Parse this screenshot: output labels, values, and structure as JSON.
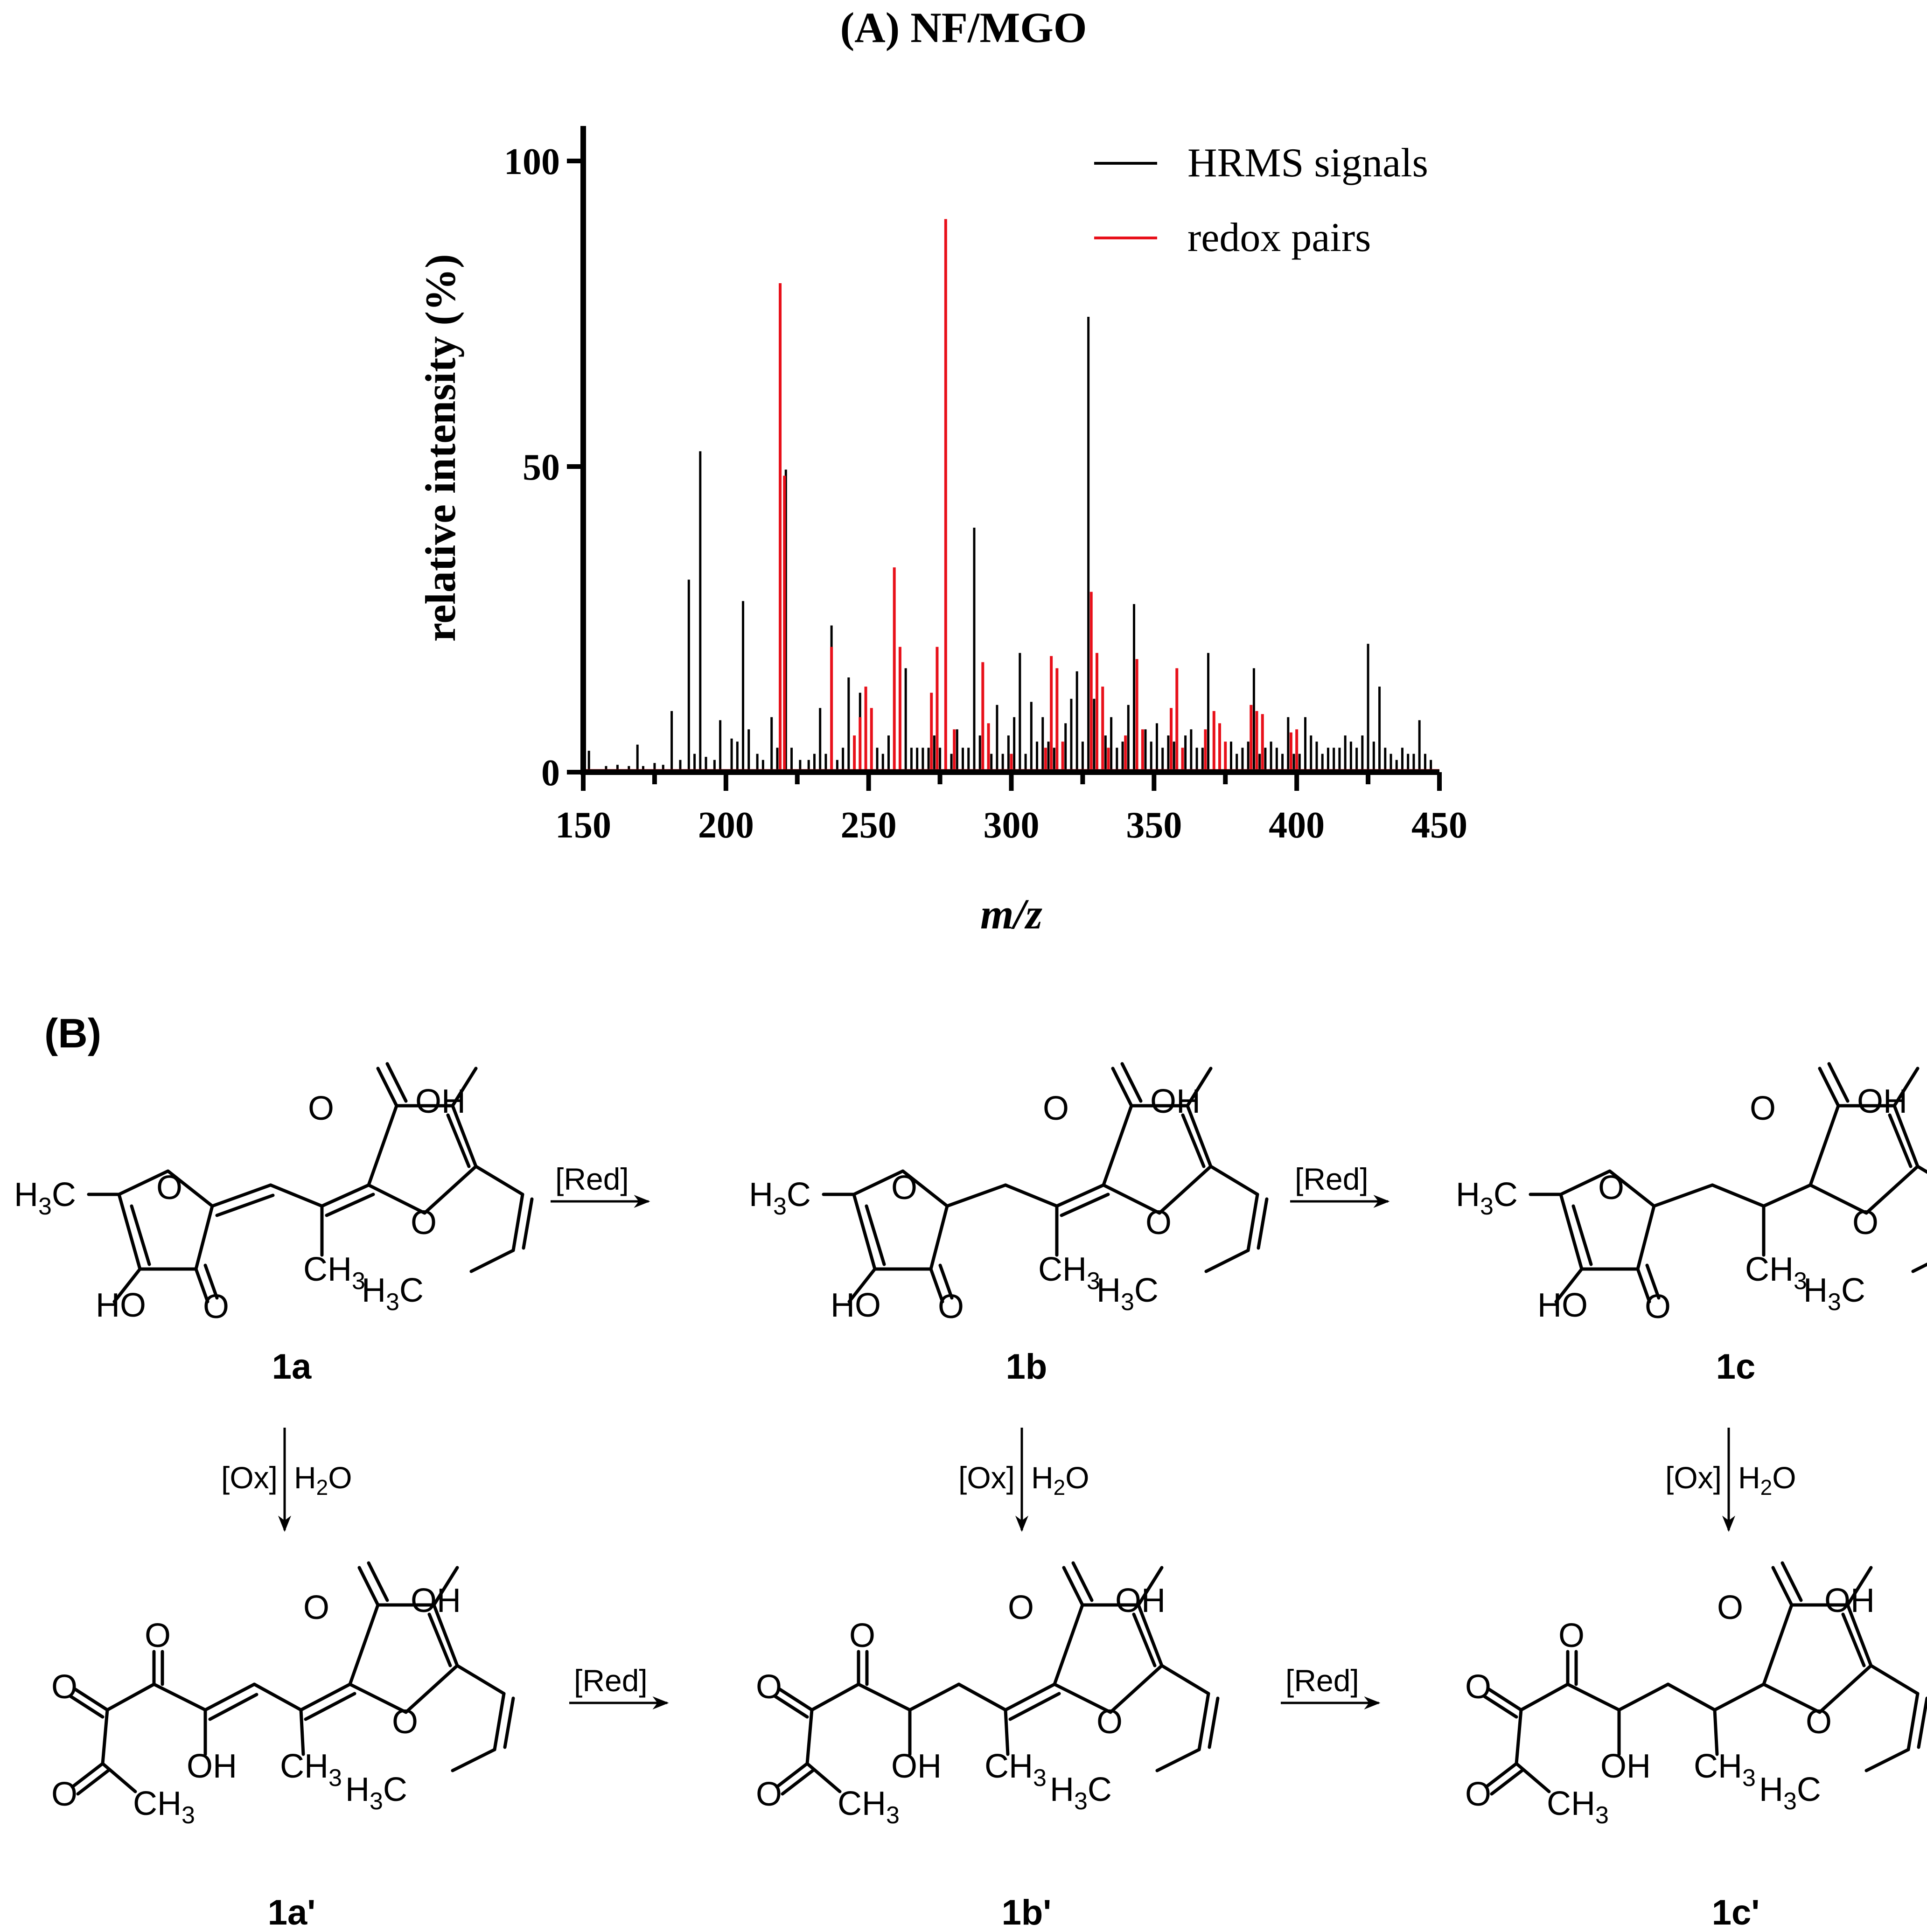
{
  "panel_a": {
    "title": "(A) NF/MGO"
  },
  "panel_b": {
    "label": "(B)",
    "compounds": [
      "1a",
      "1b",
      "1c",
      "1a'",
      "1b'",
      "1c'"
    ],
    "arrow_labels": {
      "reduction": "[Red]",
      "oxidation": "[Ox]",
      "water": "H2O"
    },
    "atom_labels": [
      "O",
      "OH",
      "HO",
      "H3C",
      "CH3"
    ]
  },
  "colors": {
    "hrms": "#000000",
    "redox": "#e8101a"
  },
  "chart_data": {
    "type": "bar",
    "title": "(A) NF/MGO",
    "xlabel": "m/z",
    "ylabel": "relative intensity (%)",
    "xlim": [
      150,
      450
    ],
    "ylim": [
      0,
      100
    ],
    "xticks": [
      150,
      200,
      250,
      300,
      350,
      400,
      450
    ],
    "yticks": [
      0,
      50,
      100
    ],
    "legend": {
      "position": "top-right",
      "entries": [
        "HRMS signals",
        "redox pairs"
      ]
    },
    "grid": false,
    "series": [
      {
        "name": "HRMS signals",
        "color": "#000000",
        "x": [
          152,
          158,
          162,
          166,
          169,
          171,
          175,
          178,
          181,
          184,
          187,
          189,
          191,
          193,
          196,
          198,
          202,
          204,
          206,
          208,
          211,
          213,
          216,
          218,
          221,
          223,
          226,
          229,
          231,
          233,
          235,
          237,
          239,
          241,
          243,
          245,
          247,
          251,
          253,
          255,
          257,
          261,
          263,
          265,
          267,
          269,
          271,
          273,
          275,
          279,
          281,
          283,
          285,
          287,
          289,
          293,
          295,
          297,
          299,
          301,
          303,
          305,
          307,
          309,
          311,
          313,
          315,
          319,
          321,
          323,
          325,
          327,
          329,
          333,
          335,
          337,
          339,
          341,
          343,
          347,
          349,
          351,
          353,
          355,
          357,
          361,
          363,
          365,
          367,
          369,
          371,
          375,
          377,
          379,
          381,
          383,
          385,
          387,
          389,
          391,
          393,
          395,
          397,
          399,
          401,
          403,
          405,
          407,
          409,
          411,
          413,
          415,
          417,
          419,
          421,
          423,
          425,
          427,
          429,
          431,
          433,
          435,
          437,
          439,
          441,
          443,
          445,
          447
        ],
        "values": [
          3.5,
          1.0,
          1.2,
          1.0,
          4.5,
          1.0,
          1.5,
          1.2,
          10,
          2,
          31.5,
          3,
          52.5,
          2.5,
          2,
          8.5,
          5.5,
          5,
          28,
          7,
          3,
          2,
          9,
          4,
          49.5,
          4,
          2,
          2,
          3,
          10.5,
          3,
          24,
          2,
          4,
          15.5,
          4,
          13,
          3,
          4,
          3,
          6,
          4,
          17,
          4,
          4,
          4,
          4,
          6,
          4,
          3,
          7,
          4,
          4,
          40,
          6,
          3,
          11,
          3,
          6,
          9,
          19.5,
          3,
          11.5,
          5,
          9,
          5,
          4,
          8,
          12,
          16.5,
          5,
          74.5,
          12,
          6,
          9,
          4,
          5,
          11,
          27.5,
          7,
          5,
          8,
          4,
          6,
          5,
          6,
          7,
          4,
          4,
          19.5,
          7,
          4,
          5,
          3,
          4,
          5,
          17,
          3,
          4,
          5,
          4,
          3,
          9,
          3,
          3,
          9,
          6,
          5,
          3,
          4,
          4,
          4,
          6,
          5,
          4,
          6,
          21,
          5,
          14,
          4,
          3,
          2,
          4,
          3,
          3,
          8.5,
          3,
          2
        ]
      },
      {
        "name": "redox pairs",
        "color": "#e8101a",
        "x": [
          219,
          220.5,
          237,
          245,
          247,
          249,
          251,
          259,
          261,
          272,
          274,
          277,
          280,
          290,
          292,
          300,
          312,
          314,
          316,
          318,
          328,
          330,
          332,
          334,
          340,
          344,
          346,
          356,
          358,
          360,
          368,
          371,
          373,
          375,
          384,
          386,
          388,
          398,
          400
        ],
        "values": [
          80,
          48.5,
          20.5,
          6,
          9,
          14,
          10.5,
          33.5,
          20.5,
          13,
          20.5,
          90.5,
          7,
          18,
          8,
          3,
          4,
          19,
          17,
          5,
          29.5,
          19.5,
          14,
          4,
          6,
          18.5,
          7,
          10.5,
          17,
          4,
          7,
          10,
          8,
          5,
          11,
          10,
          9.5,
          6.5,
          7
        ]
      }
    ]
  }
}
